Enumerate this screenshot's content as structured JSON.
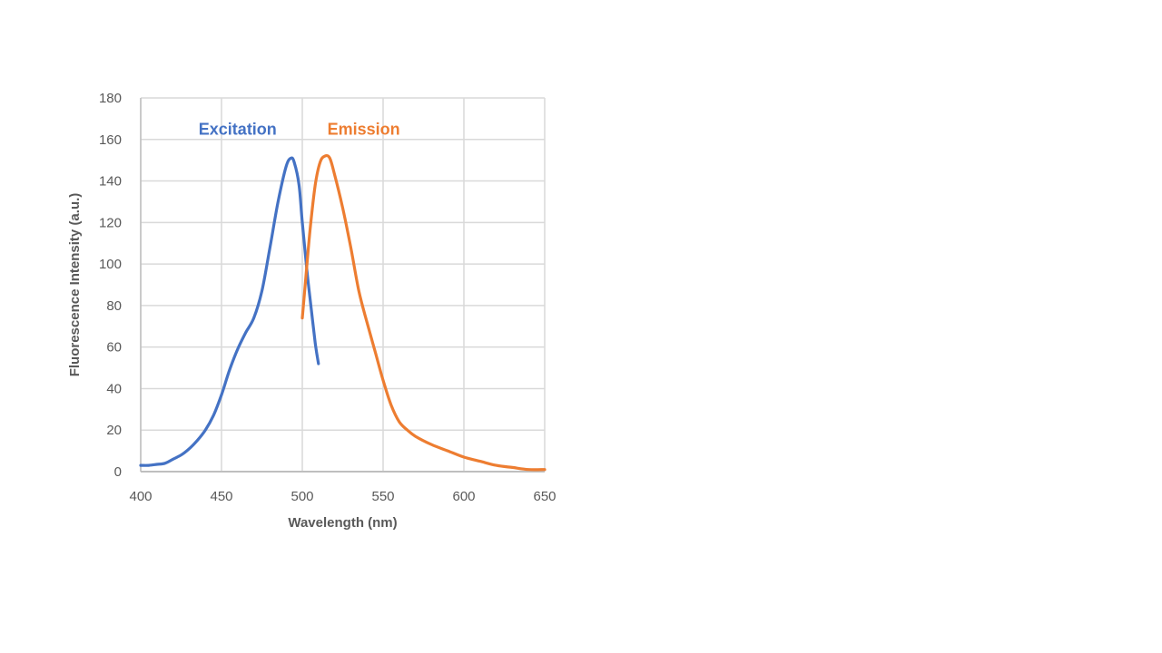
{
  "chart_data": {
    "type": "line",
    "title": "",
    "xlabel": "Wavelength (nm)",
    "ylabel": "Fluorescence Intensity (a.u.)",
    "xlim": [
      400,
      650
    ],
    "ylim": [
      0,
      180
    ],
    "x_ticks": [
      400,
      450,
      500,
      550,
      600,
      650
    ],
    "y_ticks": [
      0,
      20,
      40,
      60,
      80,
      100,
      120,
      140,
      160,
      180
    ],
    "grid": true,
    "legend": "none",
    "series": [
      {
        "name": "Excitation",
        "color": "#4472C4",
        "points": [
          [
            400,
            3
          ],
          [
            405,
            3
          ],
          [
            410,
            3.5
          ],
          [
            415,
            4
          ],
          [
            420,
            6
          ],
          [
            425,
            8
          ],
          [
            430,
            11
          ],
          [
            435,
            15
          ],
          [
            440,
            20
          ],
          [
            445,
            27
          ],
          [
            450,
            37
          ],
          [
            455,
            49
          ],
          [
            460,
            59
          ],
          [
            465,
            67
          ],
          [
            470,
            74
          ],
          [
            475,
            87
          ],
          [
            480,
            108
          ],
          [
            485,
            130
          ],
          [
            490,
            147
          ],
          [
            493,
            151
          ],
          [
            495,
            149
          ],
          [
            498,
            138
          ],
          [
            500,
            120
          ],
          [
            503,
            96
          ],
          [
            505,
            82
          ],
          [
            508,
            62
          ],
          [
            510,
            52
          ]
        ]
      },
      {
        "name": "Emission",
        "color": "#ED7D31",
        "points": [
          [
            500,
            74
          ],
          [
            502,
            92
          ],
          [
            505,
            118
          ],
          [
            508,
            138
          ],
          [
            511,
            149
          ],
          [
            514,
            152
          ],
          [
            517,
            151
          ],
          [
            520,
            143
          ],
          [
            525,
            127
          ],
          [
            530,
            108
          ],
          [
            535,
            87
          ],
          [
            540,
            72
          ],
          [
            545,
            58
          ],
          [
            550,
            44
          ],
          [
            555,
            32
          ],
          [
            560,
            24
          ],
          [
            565,
            20
          ],
          [
            570,
            17
          ],
          [
            580,
            13
          ],
          [
            590,
            10
          ],
          [
            600,
            7
          ],
          [
            610,
            5
          ],
          [
            620,
            3
          ],
          [
            630,
            2
          ],
          [
            640,
            1
          ],
          [
            650,
            1
          ]
        ]
      }
    ],
    "annotations": [
      {
        "text": "Excitation",
        "color": "#4472C4",
        "x": 460,
        "y": 165
      },
      {
        "text": "Emission",
        "color": "#ED7D31",
        "x": 538,
        "y": 165
      }
    ]
  }
}
